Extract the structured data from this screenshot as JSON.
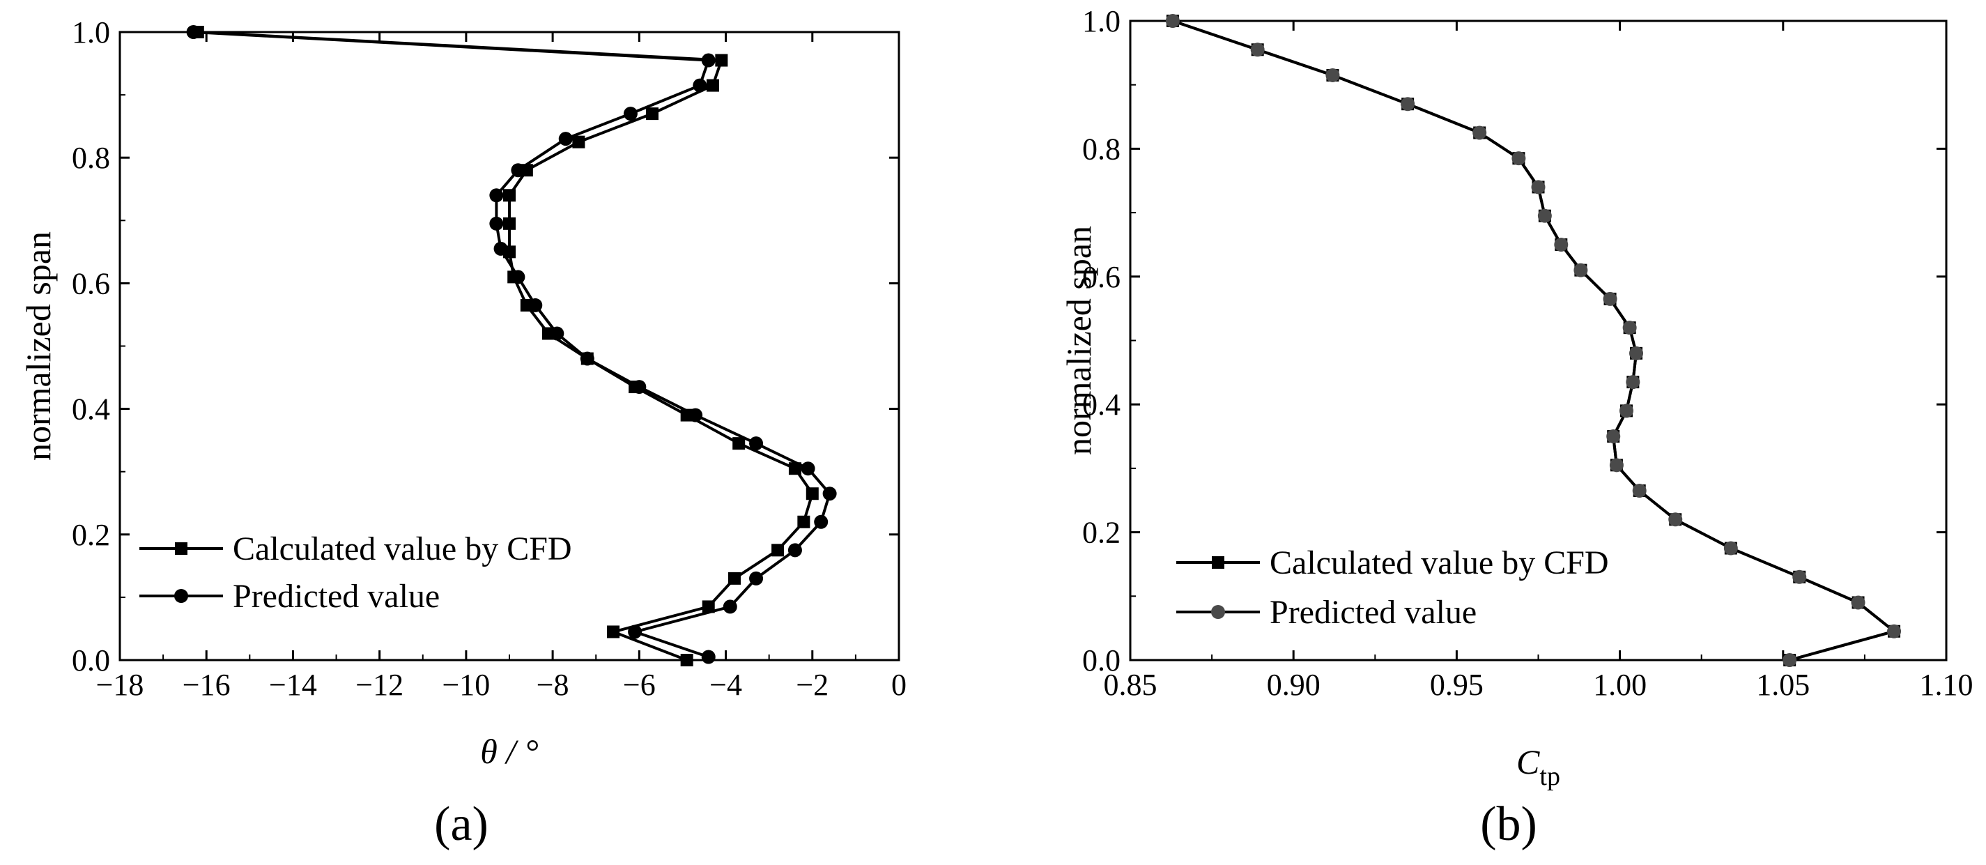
{
  "chart_data": [
    {
      "type": "line",
      "panel_label": "(a)",
      "xlabel": "θ / °",
      "ylabel": "normalized span",
      "xlim": [
        -18,
        0
      ],
      "ylim": [
        0,
        1.0
      ],
      "xticks": [
        -18,
        -16,
        -14,
        -12,
        -10,
        -8,
        -6,
        -4,
        -2,
        0
      ],
      "xtick_labels": [
        "−18",
        "−16",
        "−14",
        "−12",
        "−10",
        "−8",
        "−6",
        "−4",
        "−2",
        "0"
      ],
      "yticks": [
        0,
        0.2,
        0.4,
        0.6,
        0.8,
        1.0
      ],
      "ytick_labels": [
        "0.0",
        "0.2",
        "0.4",
        "0.6",
        "0.8",
        "1.0"
      ],
      "legend_position": "bottom-left",
      "series": [
        {
          "name": "Calculated value by CFD",
          "marker": "square",
          "color": "#000000",
          "x": [
            -4.9,
            -6.6,
            -4.4,
            -3.8,
            -2.8,
            -2.2,
            -2.0,
            -2.4,
            -3.7,
            -4.9,
            -6.1,
            -7.2,
            -8.1,
            -8.6,
            -8.9,
            -9.0,
            -9.0,
            -9.0,
            -8.6,
            -7.4,
            -5.7,
            -4.3,
            -4.1,
            -16.2
          ],
          "y": [
            0.0,
            0.045,
            0.085,
            0.13,
            0.175,
            0.22,
            0.265,
            0.305,
            0.345,
            0.39,
            0.435,
            0.48,
            0.52,
            0.565,
            0.61,
            0.65,
            0.695,
            0.74,
            0.78,
            0.825,
            0.87,
            0.915,
            0.955,
            1.0
          ]
        },
        {
          "name": "Predicted value",
          "marker": "circle",
          "color": "#000000",
          "x": [
            -4.4,
            -6.1,
            -3.9,
            -3.3,
            -2.4,
            -1.8,
            -1.6,
            -2.1,
            -3.3,
            -4.7,
            -6.0,
            -7.2,
            -7.9,
            -8.4,
            -8.8,
            -9.2,
            -9.3,
            -9.3,
            -8.8,
            -7.7,
            -6.2,
            -4.6,
            -4.4,
            -16.3
          ],
          "y": [
            0.005,
            0.045,
            0.085,
            0.13,
            0.175,
            0.22,
            0.265,
            0.305,
            0.345,
            0.39,
            0.435,
            0.48,
            0.52,
            0.565,
            0.61,
            0.655,
            0.695,
            0.74,
            0.78,
            0.83,
            0.87,
            0.915,
            0.955,
            1.0
          ]
        }
      ]
    },
    {
      "type": "line",
      "panel_label": "(b)",
      "xlabel_main": "C",
      "xlabel_sub": "tp",
      "ylabel": "normalized span",
      "xlim": [
        0.85,
        1.1
      ],
      "ylim": [
        0,
        1.0
      ],
      "xticks": [
        0.85,
        0.9,
        0.95,
        1.0,
        1.05,
        1.1
      ],
      "xtick_labels": [
        "0.85",
        "0.90",
        "0.95",
        "1.00",
        "1.05",
        "1.10"
      ],
      "yticks": [
        0,
        0.2,
        0.4,
        0.6,
        0.8,
        1.0
      ],
      "ytick_labels": [
        "0.0",
        "0.2",
        "0.4",
        "0.6",
        "0.8",
        "1.0"
      ],
      "legend_position": "bottom-left",
      "series": [
        {
          "name": "Calculated value by CFD",
          "marker": "square",
          "color": "#000000",
          "x": [
            1.052,
            1.084,
            1.073,
            1.055,
            1.034,
            1.017,
            1.006,
            0.999,
            0.998,
            1.002,
            1.004,
            1.005,
            1.003,
            0.997,
            0.988,
            0.982,
            0.977,
            0.975,
            0.969,
            0.957,
            0.935,
            0.912,
            0.889,
            0.863
          ],
          "y": [
            0.0,
            0.045,
            0.09,
            0.13,
            0.175,
            0.22,
            0.265,
            0.305,
            0.35,
            0.39,
            0.435,
            0.48,
            0.52,
            0.565,
            0.61,
            0.65,
            0.695,
            0.74,
            0.785,
            0.825,
            0.87,
            0.915,
            0.955,
            1.0
          ]
        },
        {
          "name": "Predicted value",
          "marker": "circle",
          "color": "#4a4a4a",
          "x": [
            1.052,
            1.084,
            1.073,
            1.055,
            1.034,
            1.017,
            1.006,
            0.999,
            0.998,
            1.002,
            1.004,
            1.005,
            1.003,
            0.997,
            0.988,
            0.982,
            0.977,
            0.975,
            0.969,
            0.957,
            0.935,
            0.912,
            0.889,
            0.863
          ],
          "y": [
            0.0,
            0.045,
            0.09,
            0.13,
            0.175,
            0.22,
            0.265,
            0.305,
            0.35,
            0.39,
            0.435,
            0.48,
            0.52,
            0.565,
            0.61,
            0.65,
            0.695,
            0.74,
            0.785,
            0.825,
            0.87,
            0.915,
            0.955,
            1.0
          ]
        }
      ]
    }
  ]
}
